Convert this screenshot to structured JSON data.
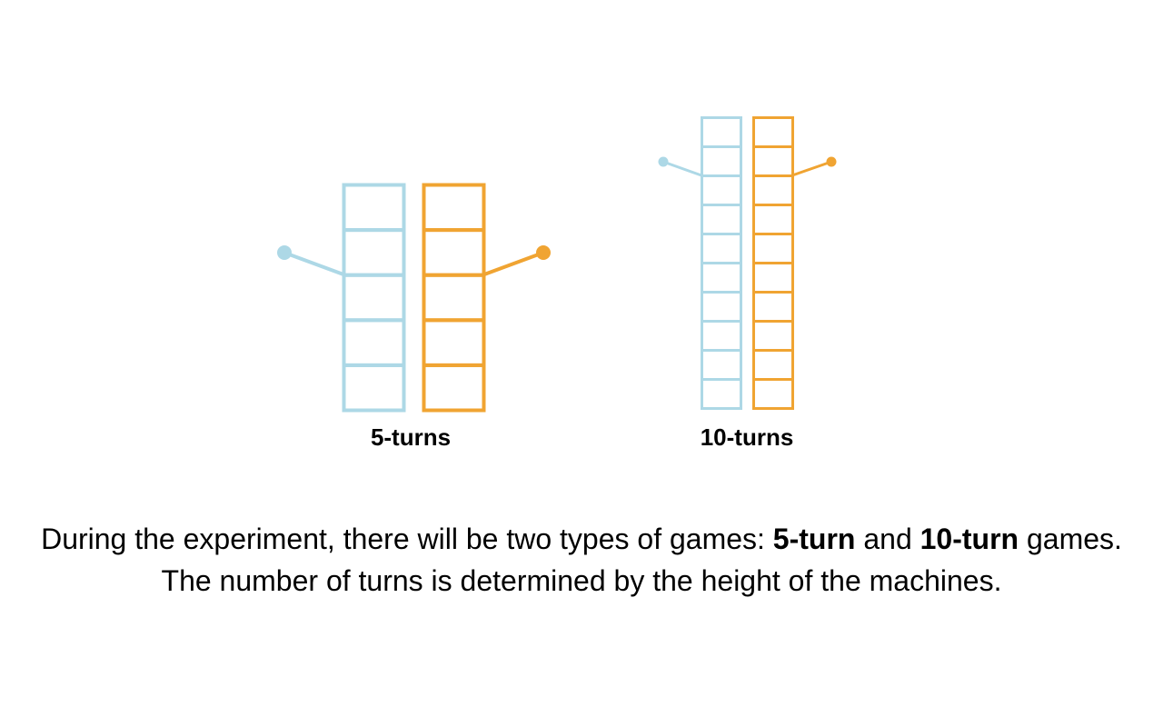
{
  "machines": {
    "five": {
      "label": "5-turns",
      "slots": 5
    },
    "ten": {
      "label": "10-turns",
      "slots": 10
    }
  },
  "colors": {
    "blue": "#add8e6",
    "orange": "#f0a432"
  },
  "description": {
    "part1": "During the experiment, there will be two types of games: ",
    "bold1": "5-turn",
    "part2": " and ",
    "bold2": "10-turn",
    "part3": " games. The number of turns is determined by the height of the machines."
  }
}
